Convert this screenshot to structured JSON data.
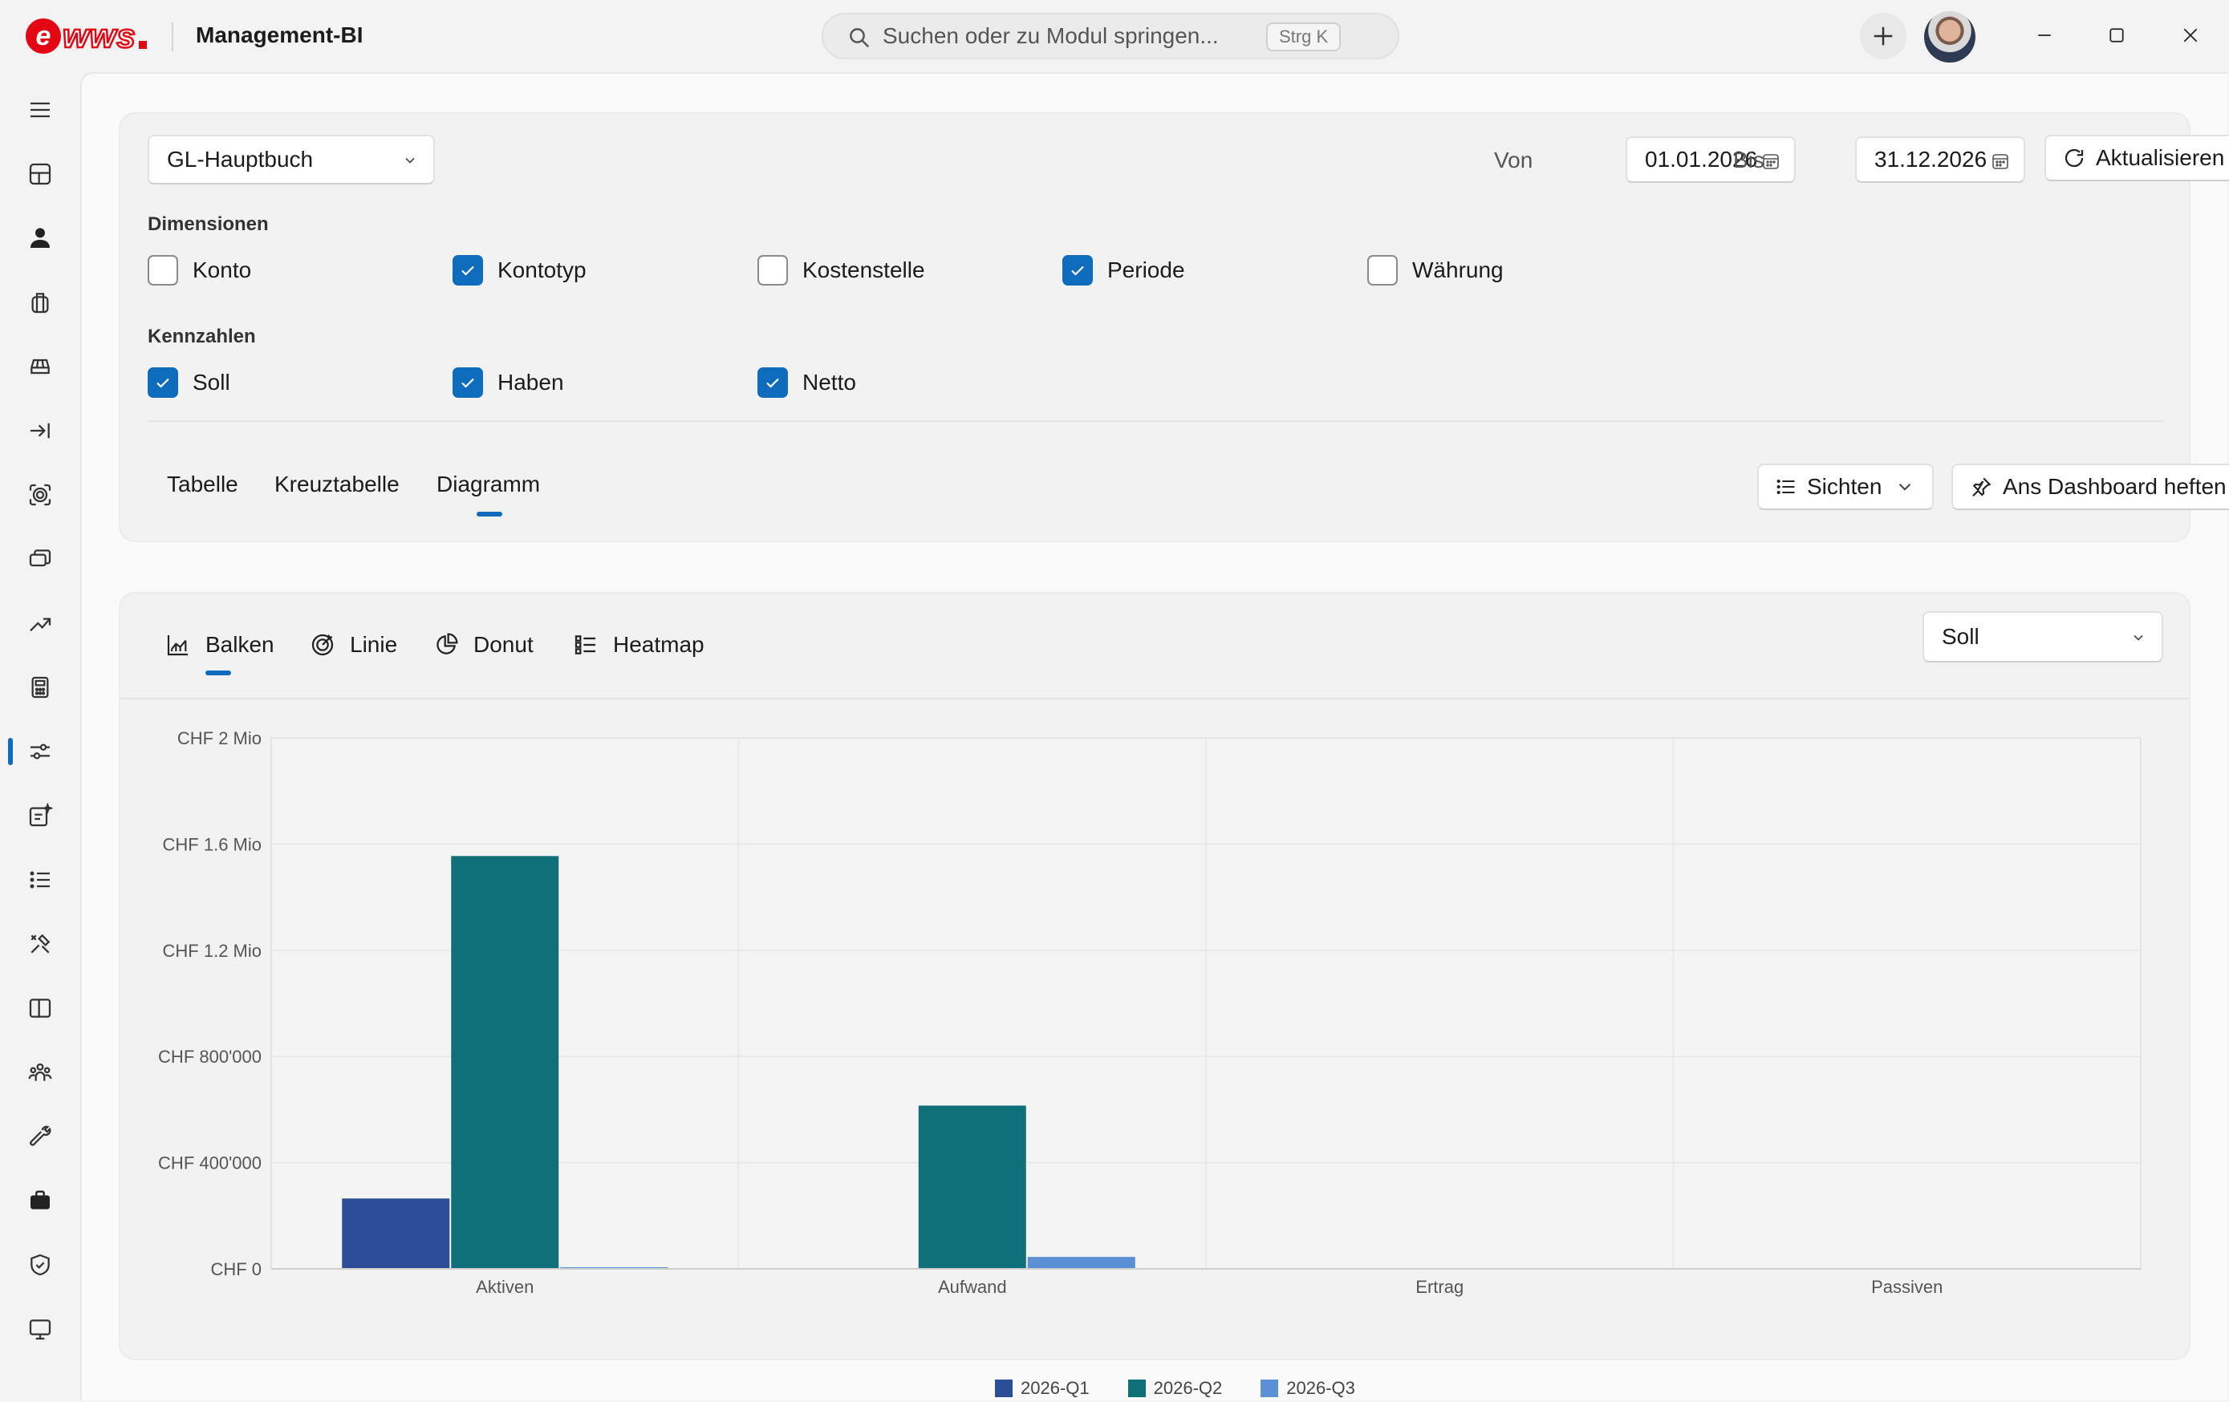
{
  "app": {
    "logo_text": "ewws",
    "title": "Management-BI"
  },
  "search": {
    "placeholder": "Suchen oder zu Modul springen...",
    "shortcut": "Strg K"
  },
  "icons": {
    "titlebar": [
      "search-icon",
      "plus-icon",
      "avatar",
      "minimize-icon",
      "maximize-icon",
      "close-icon"
    ],
    "rail": [
      "menu-icon",
      "dashboard-icon",
      "person-icon",
      "bag-icon",
      "vehicle-icon",
      "import-icon",
      "settings-scan-icon",
      "devices-icon",
      "trend-icon",
      "calculator-icon",
      "sliders-icon",
      "ai-document-icon",
      "list-icon",
      "tools-icon",
      "book-icon",
      "people-icon",
      "wrench-icon",
      "briefcase-icon",
      "shield-icon",
      "monitor-icon"
    ],
    "active_rail_item": "sliders-icon"
  },
  "filters": {
    "source_selected": "GL-Hauptbuch",
    "from_label": "Von",
    "from_value": "01.01.2026",
    "to_label": "Bis",
    "to_value": "31.12.2026",
    "refresh_label": "Aktualisieren"
  },
  "dimensions": {
    "label": "Dimensionen",
    "items": [
      {
        "label": "Konto",
        "checked": false
      },
      {
        "label": "Kontotyp",
        "checked": true
      },
      {
        "label": "Kostenstelle",
        "checked": false
      },
      {
        "label": "Periode",
        "checked": true
      },
      {
        "label": "Währung",
        "checked": false
      }
    ]
  },
  "measures": {
    "label": "Kennzahlen",
    "items": [
      {
        "label": "Soll",
        "checked": true
      },
      {
        "label": "Haben",
        "checked": true
      },
      {
        "label": "Netto",
        "checked": true
      }
    ]
  },
  "view_tabs": {
    "items": [
      "Tabelle",
      "Kreuztabelle",
      "Diagramm"
    ],
    "active": "Diagramm",
    "views_label": "Sichten",
    "pin_label": "Ans Dashboard heften"
  },
  "chart_tabs": {
    "items": [
      "Balken",
      "Linie",
      "Donut",
      "Heatmap"
    ],
    "active": "Balken",
    "measure_selected": "Soll"
  },
  "colors": {
    "accent": "#0f6cbd",
    "q1": "#2b4e96",
    "q2": "#10707a",
    "q3": "#5b8fd6"
  },
  "chart_data": {
    "type": "bar",
    "categories": [
      "Aktiven",
      "Aufwand",
      "Ertrag",
      "Passiven"
    ],
    "series": [
      {
        "name": "2026-Q1",
        "values": [
          265000,
          0,
          0,
          0
        ]
      },
      {
        "name": "2026-Q2",
        "values": [
          1555000,
          615000,
          0,
          0
        ]
      },
      {
        "name": "2026-Q3",
        "values": [
          6000,
          45000,
          0,
          0
        ]
      }
    ],
    "ylim": [
      0,
      2000000
    ],
    "yticks": [
      0,
      400000,
      800000,
      1200000,
      1600000,
      2000000
    ],
    "ytick_labels": [
      "CHF 0",
      "CHF 400'000",
      "CHF 800'000",
      "CHF 1.2 Mio",
      "CHF 1.6 Mio",
      "CHF 2 Mio"
    ],
    "grid": true,
    "legend_position": "bottom"
  }
}
